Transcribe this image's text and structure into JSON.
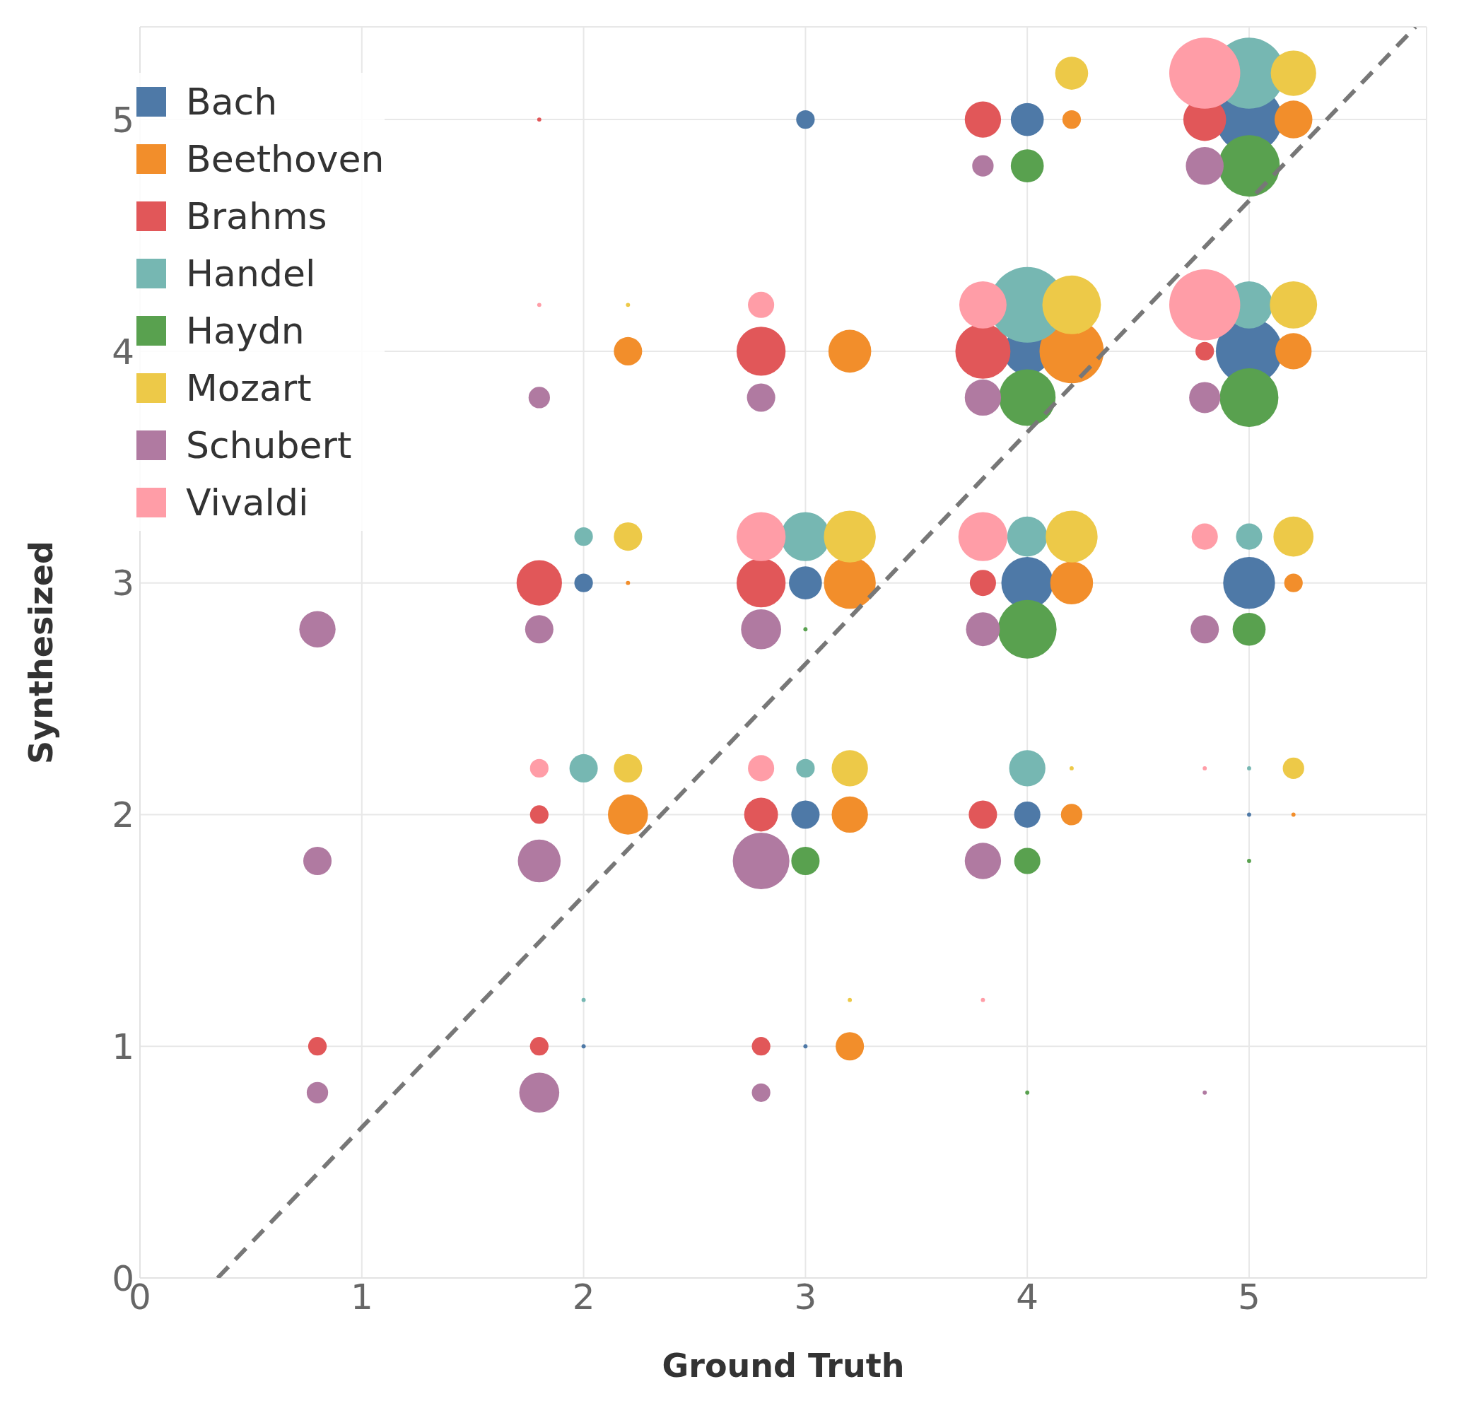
{
  "chart_data": {
    "type": "bubble",
    "xlabel": "Ground Truth",
    "ylabel": "Synthesized",
    "xlim": [
      0,
      5.8
    ],
    "ylim": [
      0,
      5.4
    ],
    "xticks": [
      0,
      1,
      2,
      3,
      4,
      5
    ],
    "yticks": [
      0,
      1,
      2,
      3,
      4,
      5
    ],
    "grid": true,
    "legend": "top left",
    "marker": "circle",
    "series": [
      {
        "name": "Bach",
        "color": "#4e79a7",
        "x": [
          3,
          4,
          5,
          4,
          5,
          2,
          3,
          4,
          5,
          3,
          4,
          5,
          2,
          3
        ],
        "values": [
          5,
          5,
          5,
          4,
          4,
          3,
          3,
          3,
          3,
          2,
          2,
          2,
          1,
          1
        ],
        "sizes": [
          0.06,
          0.19,
          0.77,
          0.39,
          0.77,
          0.06,
          0.19,
          0.47,
          0.47,
          0.14,
          0.12,
          0.003,
          0.003,
          0.003
        ]
      },
      {
        "name": "Beethoven",
        "color": "#f28e2b",
        "x": [
          4.2,
          5.2,
          2.2,
          3.2,
          4.2,
          5.2,
          2.2,
          3.2,
          4.2,
          5.2,
          2.2,
          3.2,
          4.2,
          5.2,
          3.2
        ],
        "values": [
          5,
          5,
          4,
          4,
          4,
          4,
          3,
          3,
          3,
          3,
          2,
          2,
          2,
          2,
          1
        ],
        "sizes": [
          0.06,
          0.25,
          0.14,
          0.32,
          0.72,
          0.23,
          0.003,
          0.47,
          0.32,
          0.06,
          0.28,
          0.23,
          0.08,
          0.003,
          0.14
        ]
      },
      {
        "name": "Brahms",
        "color": "#e15759",
        "x": [
          1.8,
          3.8,
          4.8,
          2.8,
          3.8,
          4.8,
          1.8,
          2.8,
          3.8,
          1.8,
          2.8,
          3.8,
          0.8,
          1.8,
          2.8
        ],
        "values": [
          5,
          5,
          5,
          4,
          4,
          4,
          3,
          3,
          3,
          2,
          2,
          2,
          1,
          1,
          1
        ],
        "sizes": [
          0.003,
          0.23,
          0.32,
          0.42,
          0.53,
          0.06,
          0.36,
          0.42,
          0.12,
          0.06,
          0.2,
          0.14,
          0.06,
          0.06,
          0.06
        ]
      },
      {
        "name": "Handel",
        "color": "#76b7b2",
        "x": [
          5,
          4,
          5,
          2,
          3,
          4,
          5,
          2,
          3,
          4,
          5,
          2
        ],
        "values": [
          5.2,
          4.2,
          4.2,
          3.2,
          3.2,
          3.2,
          3.2,
          2.2,
          2.2,
          2.2,
          2.2,
          1.2
        ],
        "sizes": [
          0.88,
          1,
          0.39,
          0.06,
          0.42,
          0.28,
          0.12,
          0.14,
          0.06,
          0.23,
          0.003,
          0.003
        ]
      },
      {
        "name": "Haydn",
        "color": "#59a14f",
        "x": [
          4,
          5,
          4,
          5,
          3,
          4,
          5,
          3,
          4,
          5,
          4
        ],
        "values": [
          4.8,
          4.8,
          3.8,
          3.8,
          2.8,
          2.8,
          2.8,
          1.8,
          1.8,
          1.8,
          0.8
        ],
        "sizes": [
          0.19,
          0.66,
          0.56,
          0.6,
          0.003,
          0.6,
          0.19,
          0.14,
          0.12,
          0.003,
          0.003
        ]
      },
      {
        "name": "Mozart",
        "color": "#edc948",
        "x": [
          4.2,
          5.2,
          2.2,
          4.2,
          5.2,
          2.2,
          3.2,
          4.2,
          5.2,
          2.2,
          3.2,
          4.2,
          5.2,
          3.2
        ],
        "values": [
          5.2,
          5.2,
          4.2,
          4.2,
          4.2,
          3.2,
          3.2,
          3.2,
          3.2,
          2.2,
          2.2,
          2.2,
          2.2,
          1.2
        ],
        "sizes": [
          0.19,
          0.36,
          0.003,
          0.6,
          0.39,
          0.14,
          0.47,
          0.47,
          0.28,
          0.14,
          0.23,
          0.003,
          0.08,
          0.003
        ]
      },
      {
        "name": "Schubert",
        "color": "#b07aa1",
        "x": [
          3.8,
          4.8,
          1.8,
          2.8,
          3.8,
          4.8,
          0.8,
          1.8,
          2.8,
          3.8,
          4.8,
          0.8,
          1.8,
          2.8,
          3.8,
          0.8,
          1.8,
          2.8,
          4.8
        ],
        "values": [
          4.8,
          4.8,
          3.8,
          3.8,
          3.8,
          3.8,
          2.8,
          2.8,
          2.8,
          2.8,
          2.8,
          1.8,
          1.8,
          1.8,
          1.8,
          0.8,
          0.8,
          0.8,
          0.8
        ],
        "sizes": [
          0.08,
          0.25,
          0.08,
          0.14,
          0.23,
          0.17,
          0.23,
          0.14,
          0.28,
          0.2,
          0.14,
          0.14,
          0.32,
          0.56,
          0.23,
          0.08,
          0.28,
          0.06,
          0.003
        ]
      },
      {
        "name": "Vivaldi",
        "color": "#ff9da7",
        "x": [
          4.8,
          1.8,
          2.8,
          3.8,
          4.8,
          2.8,
          3.8,
          4.8,
          1.8,
          2.8,
          4.8,
          3.8
        ],
        "values": [
          5.2,
          4.2,
          4.2,
          4.2,
          4.2,
          3.2,
          3.2,
          3.2,
          2.2,
          2.2,
          2.2,
          1.2
        ],
        "sizes": [
          0.88,
          0.003,
          0.12,
          0.39,
          0.88,
          0.42,
          0.42,
          0.12,
          0.06,
          0.12,
          0.003,
          0.003
        ]
      },
      {
        "type": "line",
        "color": "#777777",
        "line_style": "dashed",
        "marker": "none",
        "x": [
          0.35,
          5.75
        ],
        "values": [
          0,
          5.4
        ]
      }
    ]
  }
}
